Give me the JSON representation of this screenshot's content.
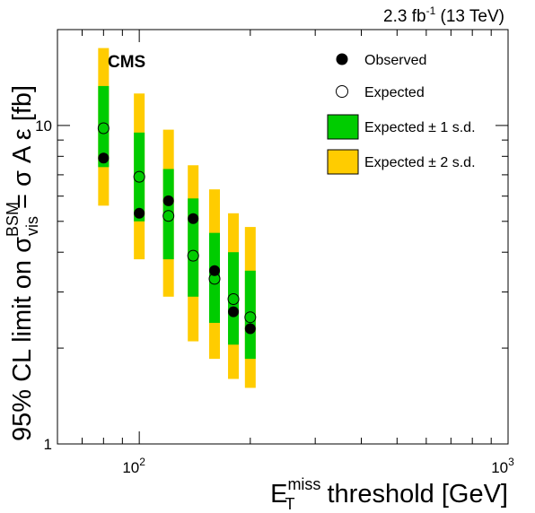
{
  "header": {
    "lumi_main": "2.3 fb",
    "lumi_exp": "-1",
    "lumi_energy": " (13 TeV)"
  },
  "experiment_label": "CMS",
  "axes": {
    "x_label_E": "E",
    "x_label_sup": "miss",
    "x_label_sub": "T",
    "x_label_rest": " threshold [GeV]",
    "y_label_main": "95% CL limit on σ",
    "y_label_sup": "BSM",
    "y_label_sub": "vis",
    "y_label_rest": " = σ A ε [fb]"
  },
  "legend": {
    "observed": "Observed",
    "expected": "Expected",
    "band1": "Expected ± 1 s.d.",
    "band2": "Expected ± 2 s.d."
  },
  "colors": {
    "band1": "#00cc00",
    "band2": "#ffcc00",
    "observed": "#000000"
  },
  "chart_data": {
    "type": "scatter",
    "x_scale": "log",
    "y_scale": "log",
    "xlim": [
      60,
      1000
    ],
    "ylim": [
      1,
      20
    ],
    "x_tick_labels": [
      {
        "value": 100,
        "base": "10",
        "exp": "2"
      },
      {
        "value": 1000,
        "base": "10",
        "exp": "3"
      }
    ],
    "y_tick_labels": [
      {
        "value": 1,
        "label": "1"
      },
      {
        "value": 10,
        "label": "10"
      }
    ],
    "points": [
      {
        "x": 80,
        "observed": 7.9,
        "expected": 9.8,
        "band1": [
          7.4,
          13.3
        ],
        "band2": [
          5.6,
          17.5
        ]
      },
      {
        "x": 100,
        "observed": 5.3,
        "expected": 6.9,
        "band1": [
          5.0,
          9.5
        ],
        "band2": [
          3.8,
          12.6
        ]
      },
      {
        "x": 120,
        "observed": 5.8,
        "expected": 5.2,
        "band1": [
          3.8,
          7.3
        ],
        "band2": [
          2.9,
          9.7
        ]
      },
      {
        "x": 140,
        "observed": 5.1,
        "expected": 3.9,
        "band1": [
          2.9,
          5.9
        ],
        "band2": [
          2.1,
          7.5
        ]
      },
      {
        "x": 160,
        "observed": 3.5,
        "expected": 3.3,
        "band1": [
          2.4,
          4.6
        ],
        "band2": [
          1.85,
          6.3
        ]
      },
      {
        "x": 180,
        "observed": 2.6,
        "expected": 2.85,
        "band1": [
          2.05,
          4.0
        ],
        "band2": [
          1.6,
          5.3
        ]
      },
      {
        "x": 200,
        "observed": 2.3,
        "expected": 2.5,
        "band1": [
          1.85,
          3.5
        ],
        "band2": [
          1.5,
          4.8
        ]
      }
    ]
  }
}
